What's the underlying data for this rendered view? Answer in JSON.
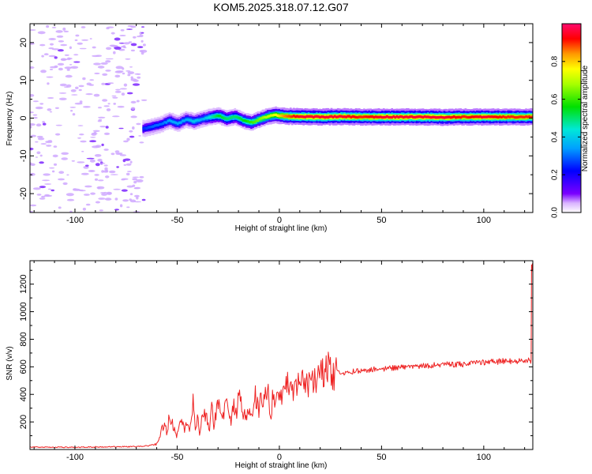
{
  "chart_data": [
    {
      "type": "heatmap",
      "title": "KOM5.2025.318.07.12.G07",
      "xlabel": "Height of straight line (km)",
      "ylabel": "Frequency (Hz)",
      "xlim": [
        -122,
        124
      ],
      "ylim": [
        -25,
        25
      ],
      "x_ticks": [
        "-100",
        "-50",
        "0",
        "50",
        "100"
      ],
      "x_tick_values": [
        -100,
        -50,
        0,
        50,
        100
      ],
      "y_ticks": [
        "-20",
        "-10",
        "0",
        "10",
        "20"
      ],
      "y_tick_values": [
        -20,
        -10,
        0,
        10,
        20
      ],
      "colorbar": {
        "label": "Normalized spectral amplitude",
        "range": [
          0,
          1
        ],
        "ticks": [
          "0.0",
          "0.2",
          "0.4",
          "0.6",
          "0.8"
        ],
        "tick_values": [
          0.0,
          0.2,
          0.4,
          0.6,
          0.8
        ]
      },
      "ridge": {
        "x": [
          -67,
          -62,
          -58,
          -54,
          -50,
          -46,
          -42,
          -38,
          -34,
          -30,
          -26,
          -22,
          -18,
          -14,
          -10,
          -6,
          -2,
          2,
          10,
          20,
          30,
          40,
          50,
          60,
          70,
          80,
          90,
          100,
          110,
          124
        ],
        "frequency": [
          -2.8,
          -2.2,
          -1.6,
          -0.6,
          -1.5,
          -0.3,
          -0.9,
          -0.2,
          0.3,
          0.6,
          -0.2,
          0.4,
          -0.6,
          -1.2,
          -0.3,
          0.5,
          0.8,
          0.5,
          0.4,
          0.3,
          0.4,
          0.3,
          0.3,
          0.3,
          0.3,
          0.2,
          0.3,
          0.3,
          0.3,
          0.3
        ],
        "amplitude": [
          0.25,
          0.3,
          0.3,
          0.35,
          0.35,
          0.35,
          0.4,
          0.35,
          0.45,
          0.55,
          0.5,
          0.5,
          0.55,
          0.6,
          0.65,
          0.7,
          0.75,
          0.85,
          0.95,
          0.95,
          0.95,
          0.9,
          0.95,
          0.95,
          0.95,
          0.95,
          0.9,
          0.95,
          0.9,
          0.9
        ]
      },
      "noise_region_x": [
        -122,
        -66
      ]
    },
    {
      "type": "line",
      "title": "",
      "xlabel": "Height of straight line (km)",
      "ylabel": "SNR (v/v)",
      "xlim": [
        -122,
        124
      ],
      "ylim": [
        0,
        1370
      ],
      "x_ticks": [
        "-100",
        "-50",
        "0",
        "50",
        "100"
      ],
      "x_tick_values": [
        -100,
        -50,
        0,
        50,
        100
      ],
      "y_ticks": [
        "200",
        "400",
        "600",
        "800",
        "1000",
        "1200"
      ],
      "y_tick_values": [
        200,
        400,
        600,
        800,
        1000,
        1200
      ],
      "series": [
        {
          "name": "SNR",
          "color": "#ee2222",
          "x": [
            -122,
            -100,
            -80,
            -70,
            -64,
            -60,
            -58,
            -56,
            -55,
            -54,
            -52,
            -50,
            -48,
            -46,
            -45,
            -44,
            -42,
            -41,
            -40,
            -39,
            -38,
            -36,
            -34,
            -33,
            -32,
            -30,
            -28,
            -27,
            -26,
            -24,
            -22,
            -21,
            -20,
            -18,
            -16,
            -15,
            -14,
            -12,
            -10,
            -9,
            -8,
            -6,
            -4,
            -3,
            -2,
            0,
            2,
            4,
            6,
            8,
            10,
            12,
            14,
            16,
            18,
            20,
            22,
            24,
            26,
            28,
            30,
            35,
            40,
            45,
            50,
            60,
            70,
            80,
            90,
            100,
            110,
            120,
            123,
            123.5,
            124
          ],
          "values": [
            18,
            16,
            20,
            22,
            28,
            40,
            130,
            180,
            110,
            250,
            170,
            100,
            230,
            140,
            210,
            120,
            380,
            120,
            230,
            120,
            200,
            260,
            150,
            310,
            180,
            340,
            200,
            280,
            390,
            200,
            320,
            240,
            380,
            290,
            220,
            330,
            210,
            430,
            270,
            400,
            300,
            460,
            250,
            420,
            310,
            460,
            380,
            470,
            400,
            500,
            450,
            510,
            470,
            540,
            500,
            560,
            530,
            600,
            520,
            570,
            545,
            565,
            575,
            580,
            585,
            595,
            605,
            615,
            620,
            630,
            640,
            645,
            645,
            1340,
            1310
          ]
        }
      ]
    }
  ]
}
